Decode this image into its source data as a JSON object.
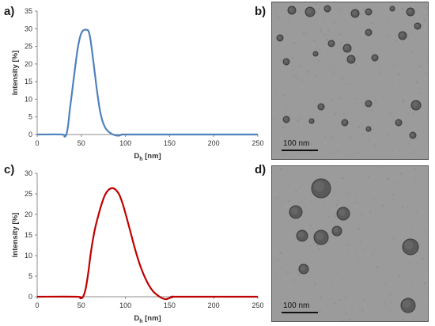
{
  "panels": {
    "a": {
      "letter": "a)"
    },
    "b": {
      "letter": "b)",
      "scale_label": "100 nm"
    },
    "c": {
      "letter": "c)"
    },
    "d": {
      "letter": "d)",
      "scale_label": "100 nm"
    }
  },
  "colors": {
    "blue_series": "#4f81bd",
    "red_series": "#c00000",
    "micrograph_bg": "#9a9a9a"
  },
  "chart_data": [
    {
      "type": "line",
      "panel": "a",
      "xlabel": "Dh [nm]",
      "xlabel_main": "D",
      "xlabel_sub": "h",
      "xlabel_unit": " [nm]",
      "ylabel": "Intensity [%]",
      "xlim": [
        0,
        250
      ],
      "ylim": [
        0,
        35
      ],
      "xticks": [
        0,
        50,
        100,
        150,
        200,
        250
      ],
      "yticks": [
        0,
        5,
        10,
        15,
        20,
        25,
        30,
        35
      ],
      "grid": false,
      "series": [
        {
          "color": "#4f81bd",
          "x": [
            0,
            28,
            31,
            33,
            35,
            37,
            40,
            43,
            46,
            49,
            52,
            55,
            58,
            60,
            62,
            65,
            68,
            71,
            74,
            77,
            80,
            83,
            86,
            90,
            93,
            96,
            100,
            110,
            250
          ],
          "y": [
            0,
            0,
            -0.6,
            0,
            2.5,
            7,
            13,
            19,
            24.5,
            28,
            29.5,
            29.7,
            29.4,
            27.5,
            24,
            18,
            12,
            7,
            3.8,
            2,
            1,
            0.4,
            0,
            -0.3,
            -0.3,
            0,
            0,
            0,
            0
          ]
        }
      ]
    },
    {
      "type": "line",
      "panel": "c",
      "xlabel": "Dh [nm]",
      "xlabel_main": "D",
      "xlabel_sub": "h",
      "xlabel_unit": " [nm]",
      "ylabel": "Intensity [%]",
      "xlim": [
        0,
        250
      ],
      "ylim": [
        0,
        30
      ],
      "xticks": [
        0,
        50,
        100,
        150,
        200,
        250
      ],
      "yticks": [
        0,
        5,
        10,
        15,
        20,
        25,
        30
      ],
      "grid": false,
      "series": [
        {
          "color": "#c00000",
          "x": [
            0,
            45,
            49,
            52,
            55,
            58,
            61,
            65,
            69,
            73,
            77,
            81,
            85,
            89,
            93,
            97,
            101,
            106,
            111,
            116,
            121,
            126,
            131,
            136,
            141,
            146,
            150,
            155,
            160,
            250
          ],
          "y": [
            0,
            0,
            -0.4,
            0,
            2,
            6,
            11,
            16,
            19.5,
            22.5,
            24.8,
            26,
            26.4,
            26,
            24.8,
            22.5,
            19.5,
            15.5,
            11.5,
            8,
            5.2,
            3,
            1.4,
            0.4,
            -0.3,
            -0.6,
            -0.3,
            0,
            0,
            0
          ]
        }
      ]
    }
  ]
}
